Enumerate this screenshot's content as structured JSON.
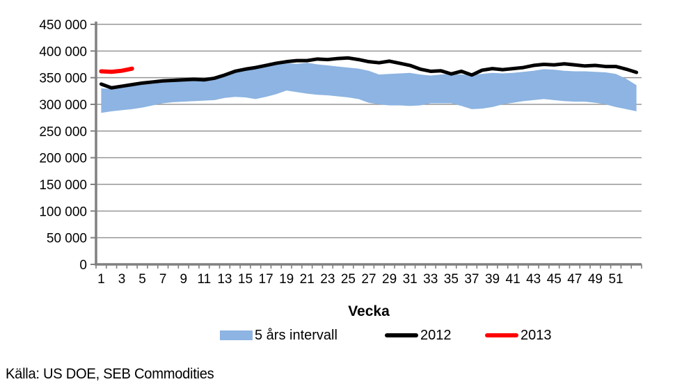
{
  "chart_data": {
    "type": "area+line",
    "x_label": "Vecka",
    "x": [
      1,
      2,
      3,
      4,
      5,
      6,
      7,
      8,
      9,
      10,
      11,
      12,
      13,
      14,
      15,
      16,
      17,
      18,
      19,
      20,
      21,
      22,
      23,
      24,
      25,
      26,
      27,
      28,
      29,
      30,
      31,
      32,
      33,
      34,
      35,
      36,
      37,
      38,
      39,
      40,
      41,
      42,
      43,
      44,
      45,
      46,
      47,
      48,
      49,
      50,
      51,
      52,
      53
    ],
    "x_tick_labels": [
      "1",
      "3",
      "5",
      "7",
      "9",
      "11",
      "13",
      "15",
      "17",
      "19",
      "21",
      "23",
      "25",
      "27",
      "29",
      "31",
      "33",
      "35",
      "37",
      "39",
      "41",
      "43",
      "45",
      "47",
      "49",
      "51"
    ],
    "ylim": [
      0,
      450000
    ],
    "y_ticks": [
      0,
      50000,
      100000,
      150000,
      200000,
      250000,
      300000,
      350000,
      400000,
      450000
    ],
    "y_tick_labels": [
      "0",
      "50 000",
      "100 000",
      "150 000",
      "200 000",
      "250 000",
      "300 000",
      "350 000",
      "400 000",
      "450 000"
    ],
    "grid": "horizontal",
    "legend_position": "bottom",
    "band": {
      "name": "5 års intervall",
      "color": "#8DB4E2",
      "upper": [
        330000,
        329000,
        331000,
        334000,
        337000,
        339000,
        341000,
        342000,
        343000,
        344000,
        345000,
        350000,
        357000,
        361000,
        364000,
        367000,
        371000,
        375000,
        377000,
        376000,
        378000,
        375000,
        373000,
        371000,
        369000,
        367000,
        363000,
        356000,
        357000,
        358000,
        359000,
        356000,
        354000,
        356000,
        357000,
        356000,
        355000,
        357000,
        359000,
        358000,
        359000,
        361000,
        363000,
        366000,
        365000,
        363000,
        362000,
        362000,
        361000,
        360000,
        357000,
        348000,
        336000
      ],
      "lower": [
        284000,
        287000,
        289000,
        291000,
        294000,
        298000,
        302000,
        304000,
        305000,
        306000,
        307000,
        308000,
        312000,
        314000,
        313000,
        310000,
        314000,
        319000,
        326000,
        323000,
        320000,
        318000,
        317000,
        315000,
        313000,
        310000,
        303000,
        300000,
        298000,
        298000,
        297000,
        298000,
        302000,
        302000,
        302000,
        297000,
        291000,
        292000,
        295000,
        300000,
        303000,
        306000,
        308000,
        310000,
        308000,
        306000,
        305000,
        305000,
        303000,
        300000,
        295000,
        291000,
        287000
      ]
    },
    "series": [
      {
        "name": "2012",
        "color": "#000000",
        "stroke_width": 5,
        "values": [
          338000,
          331000,
          334000,
          337000,
          340000,
          342000,
          344000,
          345000,
          346000,
          347000,
          346000,
          349000,
          355000,
          362000,
          366000,
          369000,
          373000,
          377000,
          380000,
          382000,
          382000,
          385000,
          384000,
          386000,
          387000,
          384000,
          380000,
          378000,
          381000,
          377000,
          373000,
          366000,
          362000,
          363000,
          357000,
          362000,
          355000,
          364000,
          367000,
          365000,
          367000,
          369000,
          373000,
          375000,
          374000,
          376000,
          374000,
          372000,
          373000,
          371000,
          371000,
          366000,
          360000
        ]
      },
      {
        "name": "2013",
        "color": "#FF0000",
        "stroke_width": 6,
        "values": [
          362000,
          361000,
          363000,
          367000
        ]
      }
    ],
    "colors": {
      "gridline": "#969696",
      "axis": "#808080",
      "text": "#000000"
    },
    "source": "Källa: US DOE, SEB Commodities"
  }
}
